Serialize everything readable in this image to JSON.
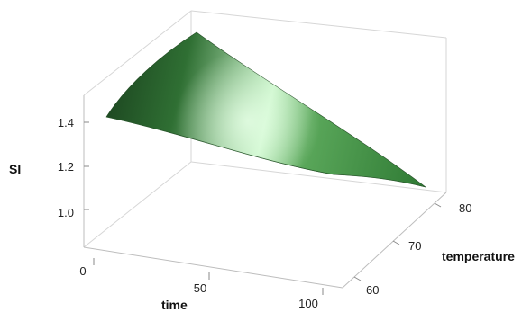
{
  "chart_data": {
    "type": "surface",
    "zlabel": "SI",
    "xlabel": "time",
    "ylabel": "temperature",
    "xticks": [
      "0",
      "50",
      "100"
    ],
    "yticks": [
      "60",
      "70",
      "80"
    ],
    "zticks": [
      "1.0",
      "1.2",
      "1.4"
    ],
    "x_range": [
      0,
      100
    ],
    "y_range": [
      55,
      80
    ],
    "z_range": [
      0.9,
      1.45
    ],
    "surface_color": "#3d8b3d",
    "highlight_color": "#c9f5c9",
    "grid": false,
    "corners": [
      {
        "time": 0,
        "temperature": 55,
        "SI": 1.39
      },
      {
        "time": 0,
        "temperature": 80,
        "SI": 1.44
      },
      {
        "time": 100,
        "temperature": 80,
        "SI": 0.99
      },
      {
        "time": 100,
        "temperature": 55,
        "SI": 1.1
      }
    ]
  }
}
